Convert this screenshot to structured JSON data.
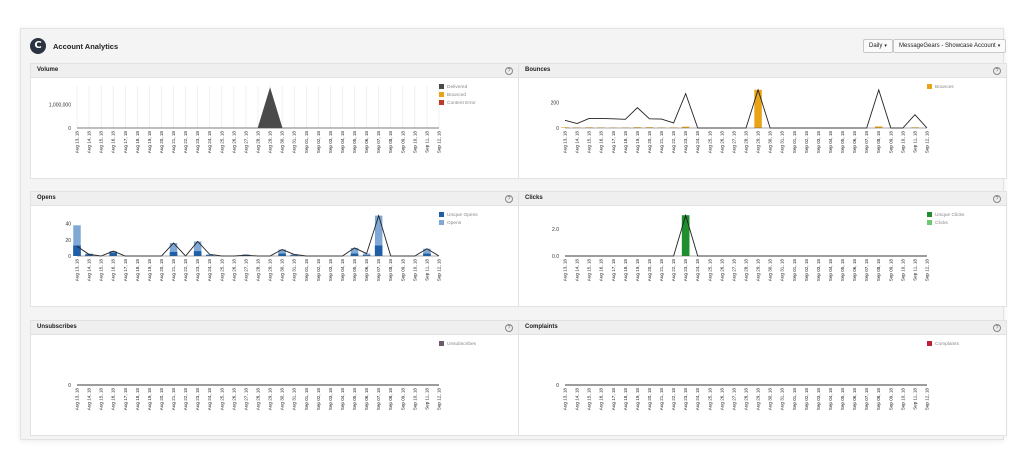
{
  "app": {
    "title": "Account Analytics",
    "logo_glyph": "C"
  },
  "toolbar": {
    "period": "Daily",
    "account": "MessageGears - Showcase Account"
  },
  "help_glyph": "?",
  "dates": [
    "Aug 13, 18",
    "Aug 14, 18",
    "Aug 15, 18",
    "Aug 16, 18",
    "Aug 17, 18",
    "Aug 18, 18",
    "Aug 19, 18",
    "Aug 20, 18",
    "Aug 21, 18",
    "Aug 22, 18",
    "Aug 23, 18",
    "Aug 24, 18",
    "Aug 25, 18",
    "Aug 26, 18",
    "Aug 27, 18",
    "Aug 28, 18",
    "Aug 29, 18",
    "Aug 30, 18",
    "Aug 31, 18",
    "Sep 01, 18",
    "Sep 02, 18",
    "Sep 03, 18",
    "Sep 04, 18",
    "Sep 05, 18",
    "Sep 06, 18",
    "Sep 07, 18",
    "Sep 08, 18",
    "Sep 09, 18",
    "Sep 10, 18",
    "Sep 11, 18",
    "Sep 12, 18"
  ],
  "chart_data": [
    {
      "id": "volume",
      "title": "Volume",
      "type": "area",
      "yticks": [
        0,
        1000000
      ],
      "ytick_labels": [
        "0",
        "1,000,000"
      ],
      "ylim": [
        0,
        1800000
      ],
      "grid": "vertical",
      "series": [
        {
          "name": "Delivered",
          "color": "#4a4a4a",
          "kind": "area",
          "values": [
            0,
            0,
            0,
            0,
            0,
            0,
            0,
            0,
            0,
            0,
            0,
            0,
            0,
            0,
            0,
            0,
            1700000,
            0,
            0,
            0,
            0,
            0,
            0,
            0,
            0,
            0,
            0,
            0,
            0,
            0,
            0
          ]
        },
        {
          "name": "Bounced",
          "color": "#e8a317",
          "kind": "legend"
        },
        {
          "name": "Content Error",
          "color": "#c0392b",
          "kind": "legend"
        }
      ]
    },
    {
      "id": "bounces",
      "title": "Bounces",
      "type": "bar+line",
      "yticks": [
        0,
        200
      ],
      "ytick_labels": [
        "0",
        "200"
      ],
      "ylim": [
        0,
        330
      ],
      "grid": "none",
      "series": [
        {
          "name": "Bounces",
          "color": "#e8a317",
          "kind": "bar",
          "values": [
            5,
            4,
            5,
            4,
            3,
            3,
            6,
            6,
            4,
            4,
            10,
            0,
            0,
            0,
            0,
            0,
            300,
            0,
            0,
            0,
            0,
            0,
            0,
            0,
            0,
            0,
            12,
            0,
            0,
            5,
            0
          ]
        },
        {
          "name": "",
          "color": "#222222",
          "kind": "line",
          "values": [
            60,
            35,
            75,
            75,
            72,
            68,
            160,
            72,
            70,
            40,
            270,
            0,
            0,
            0,
            0,
            0,
            300,
            0,
            0,
            0,
            0,
            0,
            0,
            0,
            0,
            0,
            300,
            0,
            0,
            105,
            0
          ]
        }
      ]
    },
    {
      "id": "opens",
      "title": "Opens",
      "type": "bar+line",
      "yticks": [
        0,
        20,
        40
      ],
      "ytick_labels": [
        "0",
        "20",
        "40"
      ],
      "ylim": [
        0,
        52
      ],
      "grid": "none",
      "series": [
        {
          "name": "Unique Opens",
          "color": "#1f5fa9",
          "kind": "bar",
          "values": [
            13,
            2,
            0,
            4,
            0,
            0,
            0,
            0,
            5,
            0,
            6,
            1,
            0,
            0,
            1,
            0,
            0,
            3,
            1,
            0,
            0,
            0,
            0,
            3,
            1,
            13,
            0,
            0,
            0,
            3,
            0
          ]
        },
        {
          "name": "Opens",
          "color": "#7fa9d4",
          "kind": "bar",
          "values": [
            38,
            3,
            0,
            6,
            0,
            0,
            0,
            0,
            16,
            0,
            18,
            2,
            0,
            0,
            2,
            0,
            0,
            8,
            2,
            0,
            0,
            0,
            0,
            10,
            3,
            50,
            0,
            0,
            0,
            9,
            0
          ]
        },
        {
          "name": "",
          "color": "#222222",
          "kind": "line",
          "values": [
            12,
            2,
            0,
            6,
            0,
            0,
            0,
            0,
            16,
            0,
            18,
            2,
            0,
            0,
            1,
            0,
            0,
            8,
            2,
            0,
            0,
            0,
            0,
            10,
            3,
            50,
            0,
            0,
            0,
            9,
            0
          ]
        }
      ]
    },
    {
      "id": "clicks",
      "title": "Clicks",
      "type": "bar+line",
      "yticks": [
        0,
        2
      ],
      "ytick_labels": [
        "0.0",
        "2.0"
      ],
      "ylim": [
        0,
        3.1
      ],
      "grid": "none",
      "series": [
        {
          "name": "Unique Clicks",
          "color": "#1e8e2e",
          "kind": "bar",
          "values": [
            0,
            0,
            0,
            0,
            0,
            0,
            0,
            0,
            0,
            0,
            3,
            0,
            0,
            0,
            0,
            0,
            0,
            0,
            0,
            0,
            0,
            0,
            0,
            0,
            0,
            0,
            0,
            0,
            0,
            0,
            0
          ]
        },
        {
          "name": "Clicks",
          "color": "#6cc96f",
          "kind": "bar",
          "values": [
            0,
            0,
            0,
            0,
            0,
            0,
            0,
            0,
            0,
            0,
            3,
            0,
            0,
            0,
            0,
            0,
            0,
            0,
            0,
            0,
            0,
            0,
            0,
            0,
            0,
            0,
            0,
            0,
            0,
            0,
            0
          ]
        },
        {
          "name": "",
          "color": "#222222",
          "kind": "line",
          "values": [
            0,
            0,
            0,
            0,
            0,
            0,
            0,
            0,
            0,
            0,
            3,
            0,
            0,
            0,
            0,
            0,
            0,
            0,
            0,
            0,
            0,
            0,
            0,
            0,
            0,
            0,
            0,
            0,
            0,
            0,
            0
          ]
        }
      ]
    },
    {
      "id": "unsubscribes",
      "title": "Unsubscribes",
      "type": "line",
      "yticks": [
        0
      ],
      "ytick_labels": [
        "0"
      ],
      "ylim": [
        0,
        1
      ],
      "grid": "none",
      "series": [
        {
          "name": "Unsubscribes",
          "color": "#6d5a6a",
          "kind": "legend"
        },
        {
          "name": "",
          "color": "#222222",
          "kind": "line",
          "values": [
            0,
            0,
            0,
            0,
            0,
            0,
            0,
            0,
            0,
            0,
            0,
            0,
            0,
            0,
            0,
            0,
            0,
            0,
            0,
            0,
            0,
            0,
            0,
            0,
            0,
            0,
            0,
            0,
            0,
            0,
            0
          ]
        }
      ]
    },
    {
      "id": "complaints",
      "title": "Complaints",
      "type": "line",
      "yticks": [
        0
      ],
      "ytick_labels": [
        "0"
      ],
      "ylim": [
        0,
        1
      ],
      "grid": "none",
      "series": [
        {
          "name": "Complaints",
          "color": "#c0203a",
          "kind": "legend"
        },
        {
          "name": "",
          "color": "#222222",
          "kind": "line",
          "values": [
            0,
            0,
            0,
            0,
            0,
            0,
            0,
            0,
            0,
            0,
            0,
            0,
            0,
            0,
            0,
            0,
            0,
            0,
            0,
            0,
            0,
            0,
            0,
            0,
            0,
            0,
            0,
            0,
            0,
            0,
            0
          ]
        }
      ]
    }
  ]
}
